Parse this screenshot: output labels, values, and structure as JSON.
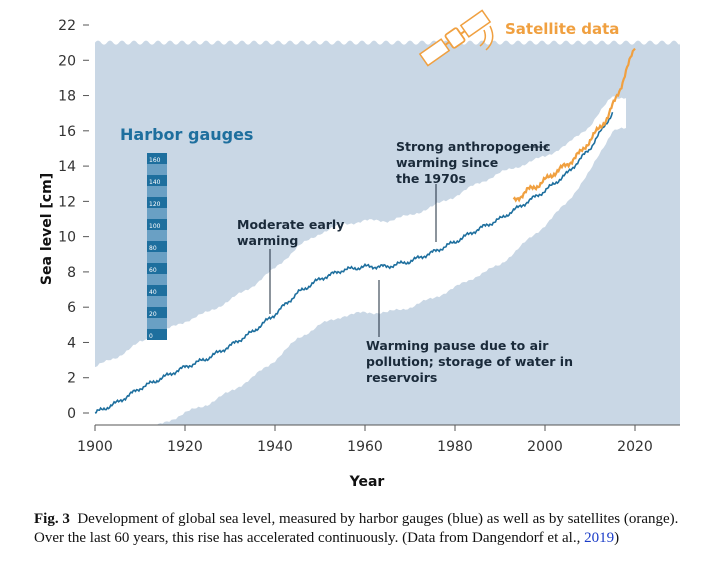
{
  "chart_data": {
    "type": "line",
    "xlabel": "Year",
    "ylabel": "Sea level [cm]",
    "xlim": [
      1900,
      2030
    ],
    "ylim": [
      0,
      22
    ],
    "x_ticks": [
      "1900",
      "1920",
      "1940",
      "1960",
      "1980",
      "2000",
      "2020"
    ],
    "y_ticks": [
      "0",
      "2",
      "4",
      "6",
      "8",
      "10",
      "12",
      "14",
      "16",
      "18",
      "20",
      "22"
    ],
    "grid": false,
    "series": [
      {
        "name": "Harbor gauges",
        "color": "#1e6f9e",
        "x": [
          1900,
          1905,
          1910,
          1915,
          1920,
          1925,
          1930,
          1935,
          1940,
          1945,
          1950,
          1955,
          1960,
          1965,
          1970,
          1975,
          1980,
          1985,
          1990,
          1995,
          2000,
          2005,
          2010,
          2015
        ],
        "y": [
          0.0,
          0.6,
          1.4,
          2.0,
          2.6,
          3.1,
          3.8,
          4.6,
          5.6,
          6.8,
          7.6,
          8.1,
          8.3,
          8.3,
          8.6,
          9.1,
          9.7,
          10.4,
          11.0,
          11.8,
          12.6,
          13.6,
          15.0,
          17.0
        ],
        "band_width": 2.6
      },
      {
        "name": "Satellite data",
        "color": "#f0a040",
        "x": [
          1993,
          1996,
          1999,
          2002,
          2005,
          2008,
          2011,
          2014,
          2017,
          2020
        ],
        "y": [
          12.0,
          12.6,
          13.0,
          13.6,
          14.1,
          14.8,
          15.8,
          16.8,
          18.6,
          20.8
        ]
      }
    ],
    "annotations": [
      {
        "lines": [
          "Moderate early",
          "warming"
        ],
        "x": 1939,
        "y": 5.5
      },
      {
        "lines": [
          "Strong anthropogenic",
          "warming since",
          "the 1970s"
        ],
        "x": 1976,
        "y": 9.5
      },
      {
        "lines": [
          "Warming pause due to air",
          "pollution; storage of water in",
          "reservoirs"
        ],
        "x": 1963,
        "y": 7.5
      }
    ],
    "gauge_ticks": [
      "160",
      "140",
      "120",
      "100",
      "80",
      "60",
      "40",
      "20",
      "0"
    ]
  },
  "caption": {
    "label": "Fig. 3",
    "text": "Development of global sea level, measured by harbor gauges (blue) as well as by satellites (orange). Over the last 60 years, this rise has accelerated continuously. (Data from Dangendorf et al., ",
    "link": "2019",
    "tail": ")"
  },
  "colors": {
    "sea": "#c9d7e5",
    "band": "#ffffff",
    "blue": "#1e6f9e",
    "orange": "#f0a040",
    "gauge_dark": "#1e6f9e",
    "gauge_light": "#6aa0c4"
  }
}
